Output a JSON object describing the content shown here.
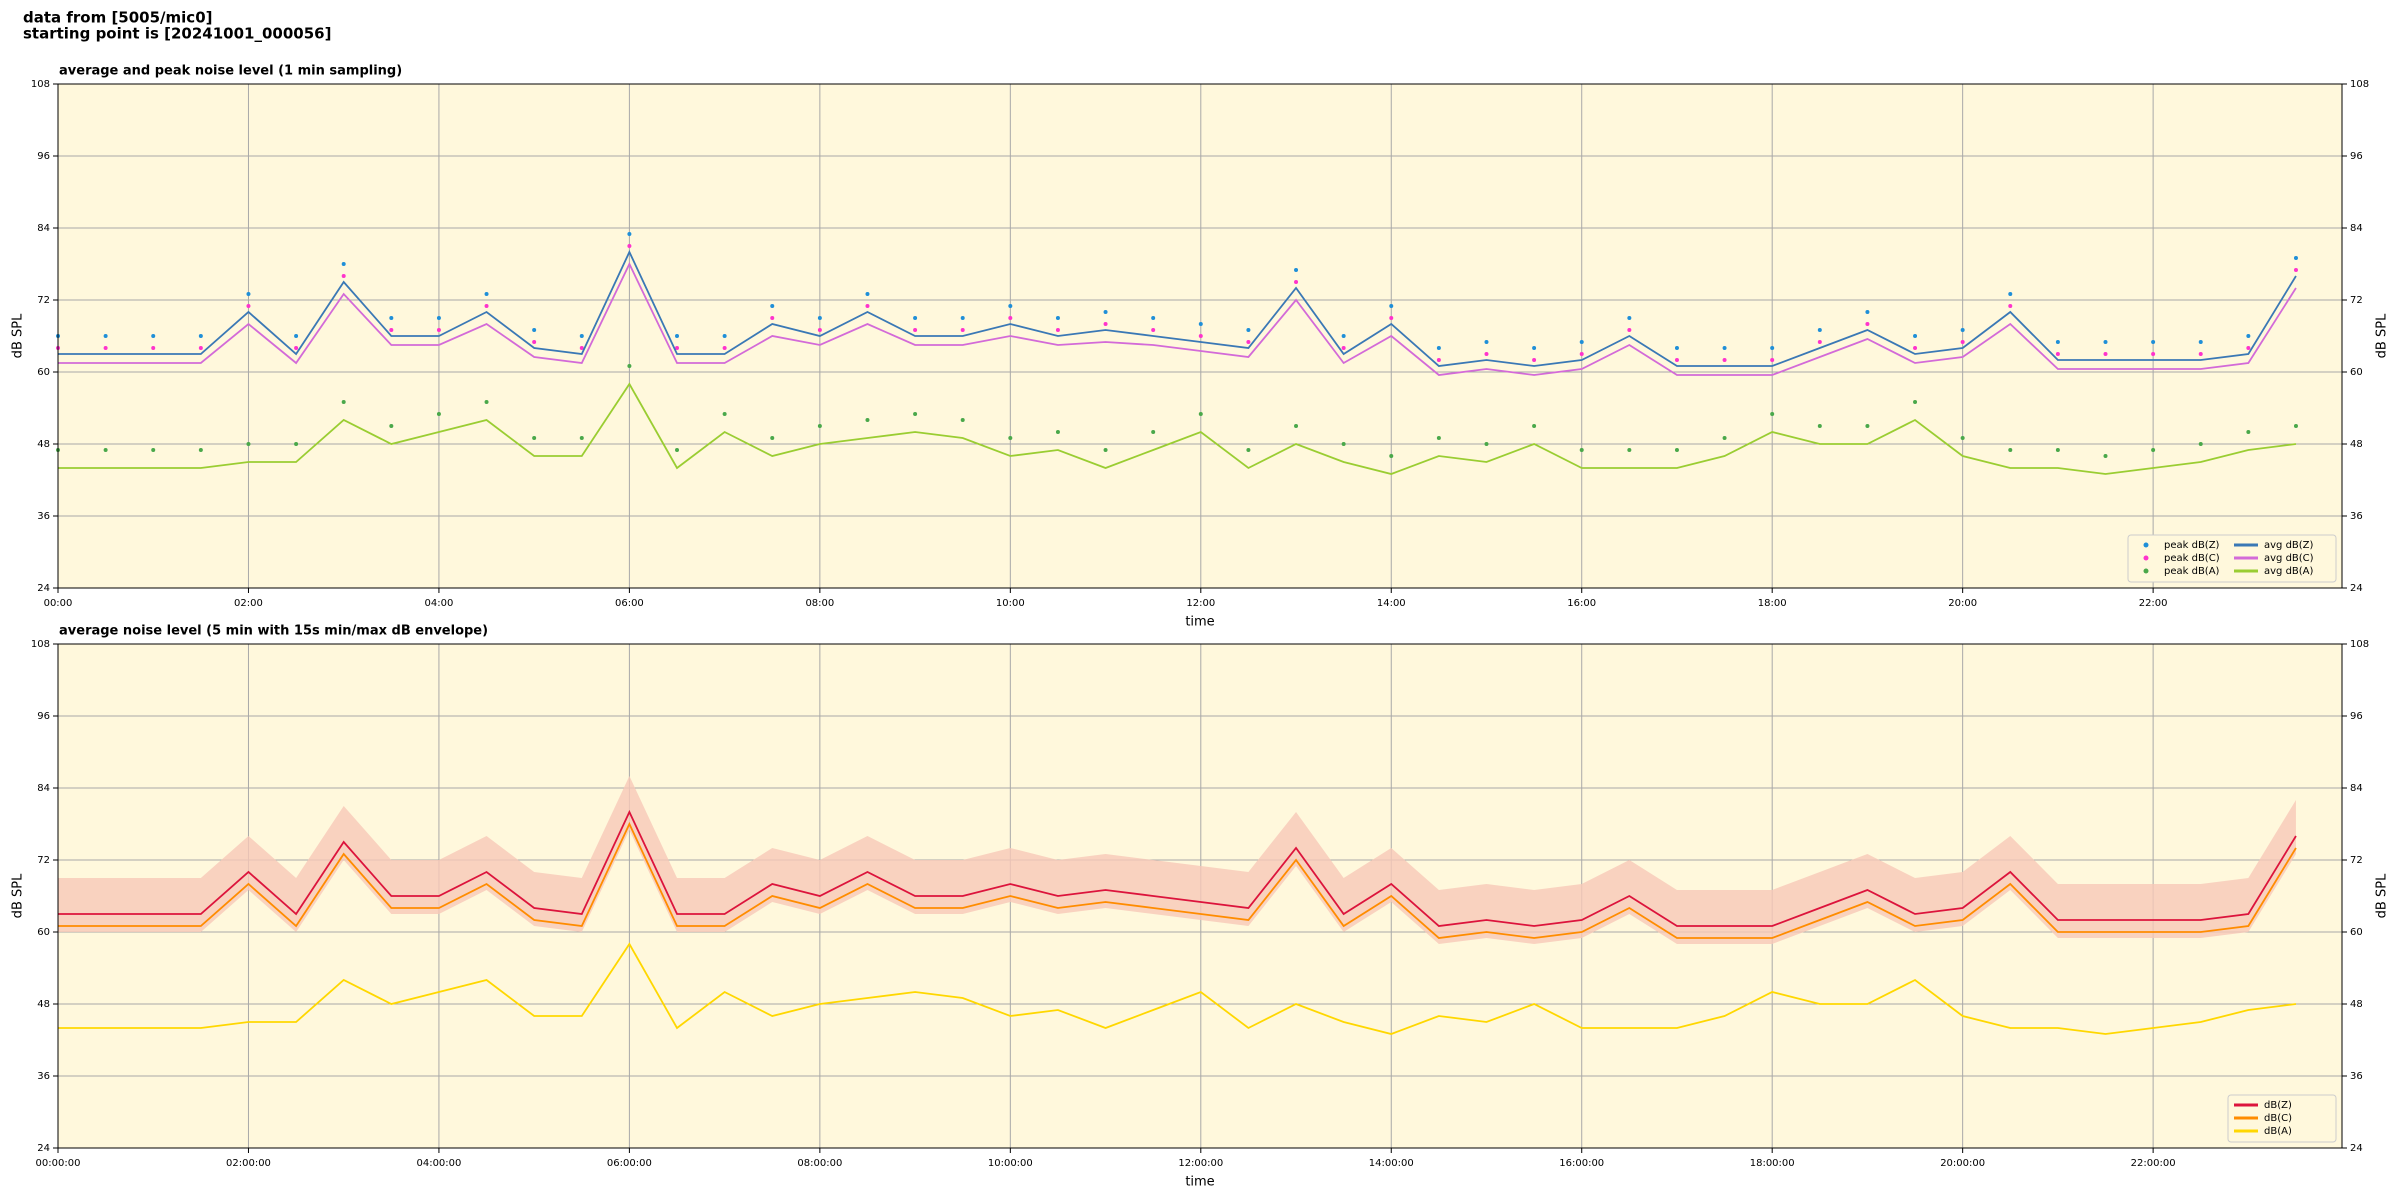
{
  "title": [
    "data from [5005/mic0]",
    "starting point is [20241001_000056]"
  ],
  "chart_data": [
    {
      "type": "line",
      "title": "average and peak noise level (1 min sampling)",
      "xlabel": "time",
      "ylabel": "dB SPL",
      "x": [
        "00:00",
        "00:30",
        "01:00",
        "01:30",
        "02:00",
        "02:30",
        "03:00",
        "03:30",
        "04:00",
        "04:30",
        "05:00",
        "05:30",
        "06:00",
        "06:30",
        "07:00",
        "07:30",
        "08:00",
        "08:30",
        "09:00",
        "09:30",
        "10:00",
        "10:30",
        "11:00",
        "11:30",
        "12:00",
        "12:30",
        "13:00",
        "13:30",
        "14:00",
        "14:30",
        "15:00",
        "15:30",
        "16:00",
        "16:30",
        "17:00",
        "17:30",
        "18:00",
        "18:30",
        "19:00",
        "19:30",
        "20:00",
        "20:30",
        "21:00",
        "21:30",
        "22:00",
        "22:30",
        "23:00",
        "23:30"
      ],
      "xlim": [
        "00:00",
        "23:59"
      ],
      "xticks": [
        "00:00",
        "02:00",
        "04:00",
        "06:00",
        "08:00",
        "10:00",
        "12:00",
        "14:00",
        "16:00",
        "18:00",
        "20:00",
        "22:00"
      ],
      "ylim": [
        24,
        108
      ],
      "yticks": [
        24,
        36,
        48,
        60,
        72,
        84,
        96,
        108
      ],
      "grid": true,
      "legend": "lower right",
      "legend_columns": 2,
      "series": [
        {
          "name": "peak dB(Z)",
          "style": "dots",
          "color": "#1f8fd8",
          "values": [
            66,
            66,
            66,
            66,
            73,
            66,
            78,
            69,
            69,
            73,
            67,
            66,
            83,
            66,
            66,
            71,
            69,
            73,
            69,
            69,
            71,
            69,
            70,
            69,
            68,
            67,
            77,
            66,
            71,
            64,
            65,
            64,
            65,
            69,
            64,
            64,
            64,
            67,
            70,
            66,
            67,
            73,
            65,
            65,
            65,
            65,
            66,
            79
          ]
        },
        {
          "name": "peak dB(C)",
          "style": "dots",
          "color": "#ff33cc",
          "values": [
            64,
            64,
            64,
            64,
            71,
            64,
            76,
            67,
            67,
            71,
            65,
            64,
            81,
            64,
            64,
            69,
            67,
            71,
            67,
            67,
            69,
            67,
            68,
            67,
            66,
            65,
            75,
            64,
            69,
            62,
            63,
            62,
            63,
            67,
            62,
            62,
            62,
            65,
            68,
            64,
            65,
            71,
            63,
            63,
            63,
            63,
            64,
            77
          ]
        },
        {
          "name": "peak dB(A)",
          "style": "dots",
          "color": "#4aa84a",
          "values": [
            47,
            47,
            47,
            47,
            48,
            48,
            55,
            51,
            53,
            55,
            49,
            49,
            61,
            47,
            53,
            49,
            51,
            52,
            53,
            52,
            49,
            50,
            47,
            50,
            53,
            47,
            51,
            48,
            46,
            49,
            48,
            51,
            47,
            47,
            47,
            49,
            53,
            51,
            51,
            55,
            49,
            47,
            47,
            46,
            47,
            48,
            50,
            51
          ]
        },
        {
          "name": "avg dB(Z)",
          "style": "line",
          "color": "#3a78b5",
          "values": [
            63,
            63,
            63,
            63,
            70,
            63,
            75,
            66,
            66,
            70,
            64,
            63,
            80,
            63,
            63,
            68,
            66,
            70,
            66,
            66,
            68,
            66,
            67,
            66,
            65,
            64,
            74,
            63,
            68,
            61,
            62,
            61,
            62,
            66,
            61,
            61,
            61,
            64,
            67,
            63,
            64,
            70,
            62,
            62,
            62,
            62,
            63,
            76
          ]
        },
        {
          "name": "avg dB(C)",
          "style": "line",
          "color": "#d36ad8",
          "values": [
            61.5,
            61.5,
            61.5,
            61.5,
            68,
            61.5,
            73,
            64.5,
            64.5,
            68,
            62.5,
            61.5,
            78,
            61.5,
            61.5,
            66,
            64.5,
            68,
            64.5,
            64.5,
            66,
            64.5,
            65,
            64.5,
            63.5,
            62.5,
            72,
            61.5,
            66,
            59.5,
            60.5,
            59.5,
            60.5,
            64.5,
            59.5,
            59.5,
            59.5,
            62.5,
            65.5,
            61.5,
            62.5,
            68,
            60.5,
            60.5,
            60.5,
            60.5,
            61.5,
            74
          ]
        },
        {
          "name": "avg dB(A)",
          "style": "line",
          "color": "#9acd32",
          "values": [
            44,
            44,
            44,
            44,
            45,
            45,
            52,
            48,
            50,
            52,
            46,
            46,
            58,
            44,
            50,
            46,
            48,
            49,
            50,
            49,
            46,
            47,
            44,
            47,
            50,
            44,
            48,
            45,
            43,
            46,
            45,
            48,
            44,
            44,
            44,
            46,
            50,
            48,
            48,
            52,
            46,
            44,
            44,
            43,
            44,
            45,
            47,
            48
          ]
        }
      ]
    },
    {
      "type": "line",
      "title": "average noise level (5 min with 15s min/max dB envelope)",
      "xlabel": "time",
      "ylabel": "dB SPL",
      "x": [
        "00:00:00",
        "00:30:00",
        "01:00:00",
        "01:30:00",
        "02:00:00",
        "02:30:00",
        "03:00:00",
        "03:30:00",
        "04:00:00",
        "04:30:00",
        "05:00:00",
        "05:30:00",
        "06:00:00",
        "06:30:00",
        "07:00:00",
        "07:30:00",
        "08:00:00",
        "08:30:00",
        "09:00:00",
        "09:30:00",
        "10:00:00",
        "10:30:00",
        "11:00:00",
        "11:30:00",
        "12:00:00",
        "12:30:00",
        "13:00:00",
        "13:30:00",
        "14:00:00",
        "14:30:00",
        "15:00:00",
        "15:30:00",
        "16:00:00",
        "16:30:00",
        "17:00:00",
        "17:30:00",
        "18:00:00",
        "18:30:00",
        "19:00:00",
        "19:30:00",
        "20:00:00",
        "20:30:00",
        "21:00:00",
        "21:30:00",
        "22:00:00",
        "22:30:00",
        "23:00:00",
        "23:30:00"
      ],
      "xlim": [
        "00:00:00",
        "23:59:00"
      ],
      "xticks": [
        "00:00:00",
        "02:00:00",
        "04:00:00",
        "06:00:00",
        "08:00:00",
        "10:00:00",
        "12:00:00",
        "14:00:00",
        "16:00:00",
        "18:00:00",
        "20:00:00",
        "22:00:00"
      ],
      "ylim": [
        24,
        108
      ],
      "yticks": [
        24,
        36,
        48,
        60,
        72,
        84,
        96,
        108
      ],
      "grid": true,
      "legend": "lower right",
      "legend_columns": 1,
      "envelope": {
        "color": "#f8c8b8",
        "max": [
          69,
          69,
          69,
          69,
          76,
          69,
          81,
          72,
          72,
          76,
          70,
          69,
          86,
          69,
          69,
          74,
          72,
          76,
          72,
          72,
          74,
          72,
          73,
          72,
          71,
          70,
          80,
          69,
          74,
          67,
          68,
          67,
          68,
          72,
          67,
          67,
          67,
          70,
          73,
          69,
          70,
          76,
          68,
          68,
          68,
          68,
          69,
          82
        ],
        "min": [
          60,
          60,
          60,
          60,
          67,
          60,
          72,
          63,
          63,
          67,
          61,
          60,
          77,
          60,
          60,
          65,
          63,
          67,
          63,
          63,
          65,
          63,
          64,
          63,
          62,
          61,
          71,
          60,
          65,
          58,
          59,
          58,
          59,
          63,
          58,
          58,
          58,
          61,
          64,
          60,
          61,
          67,
          59,
          59,
          59,
          59,
          60,
          73
        ]
      },
      "series": [
        {
          "name": "dB(Z)",
          "style": "line",
          "color": "#dc143c",
          "values": [
            63,
            63,
            63,
            63,
            70,
            63,
            75,
            66,
            66,
            70,
            64,
            63,
            80,
            63,
            63,
            68,
            66,
            70,
            66,
            66,
            68,
            66,
            67,
            66,
            65,
            64,
            74,
            63,
            68,
            61,
            62,
            61,
            62,
            66,
            61,
            61,
            61,
            64,
            67,
            63,
            64,
            70,
            62,
            62,
            62,
            62,
            63,
            76
          ]
        },
        {
          "name": "dB(C)",
          "style": "line",
          "color": "#ff8c00",
          "values": [
            61,
            61,
            61,
            61,
            68,
            61,
            73,
            64,
            64,
            68,
            62,
            61,
            78,
            61,
            61,
            66,
            64,
            68,
            64,
            64,
            66,
            64,
            65,
            64,
            63,
            62,
            72,
            61,
            66,
            59,
            60,
            59,
            60,
            64,
            59,
            59,
            59,
            62,
            65,
            61,
            62,
            68,
            60,
            60,
            60,
            60,
            61,
            74
          ]
        },
        {
          "name": "dB(A)",
          "style": "line",
          "color": "#ffd700",
          "values": [
            44,
            44,
            44,
            44,
            45,
            45,
            52,
            48,
            50,
            52,
            46,
            46,
            58,
            44,
            50,
            46,
            48,
            49,
            50,
            49,
            46,
            47,
            44,
            47,
            50,
            44,
            48,
            45,
            43,
            46,
            45,
            48,
            44,
            44,
            44,
            46,
            50,
            48,
            48,
            52,
            46,
            44,
            44,
            43,
            44,
            45,
            47,
            48
          ]
        }
      ]
    }
  ]
}
